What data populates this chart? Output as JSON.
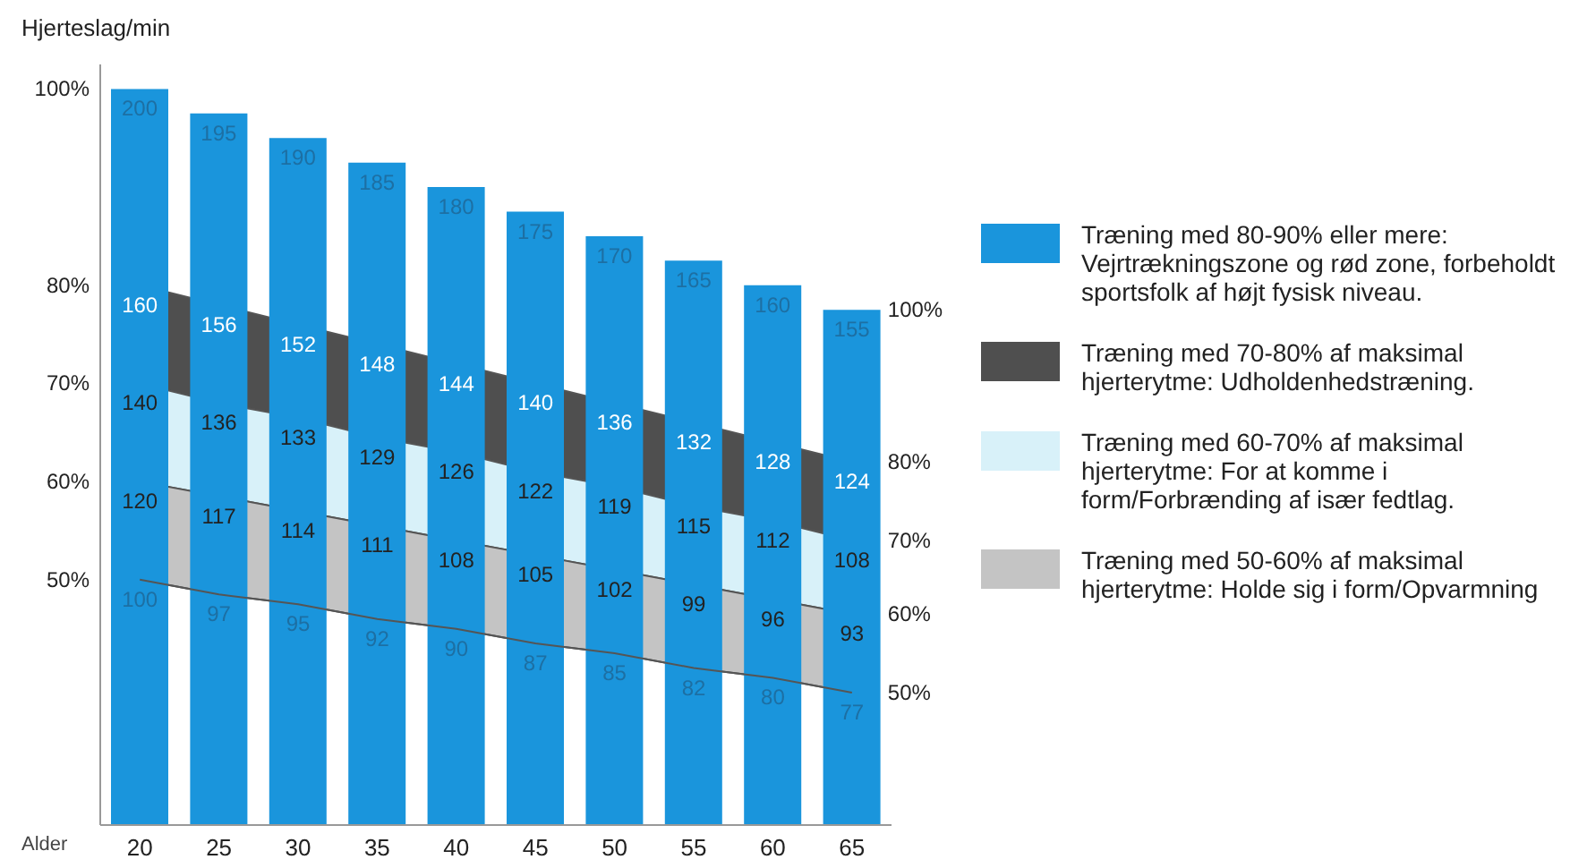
{
  "chart_data": {
    "type": "bar",
    "xlabel": "Alder",
    "ylabel": "Hjerteslag/min",
    "categories": [
      "20",
      "25",
      "30",
      "35",
      "40",
      "45",
      "50",
      "55",
      "60",
      "65"
    ],
    "ylim": [
      50,
      205
    ],
    "series": [
      {
        "name": "Træning med 80-90% eller mere: Vejrtrækningszone og rød zone, forbeholdt sportsfolk af højt fysisk niveau.",
        "color": "#1a95dc",
        "values": [
          200,
          195,
          190,
          185,
          180,
          175,
          170,
          165,
          160,
          155
        ],
        "value_labels": [
          "200",
          "195",
          "190",
          "185",
          "180",
          "175",
          "170",
          "165",
          "160",
          "155"
        ]
      },
      {
        "type": "area",
        "name": "Træning med 70-80% af maksimal hjerterytme: Udholdenhedstræning.",
        "color": "#4f4f4f",
        "values": [
          160,
          156,
          152,
          148,
          144,
          140,
          136,
          132,
          128,
          124
        ],
        "value_labels": [
          "160",
          "156",
          "152",
          "148",
          "144",
          "140",
          "136",
          "132",
          "128",
          "124"
        ]
      },
      {
        "type": "area",
        "name": "Træning med 60-70% af maksimal hjerterytme: For at komme i form/Forbrænding af især fedtlag.",
        "color": "#d8f1f9",
        "values": [
          140,
          136,
          133,
          129,
          126,
          122,
          119,
          115,
          112,
          108
        ],
        "value_labels": [
          "140",
          "136",
          "133",
          "129",
          "126",
          "122",
          "119",
          "115",
          "112",
          "108"
        ]
      },
      {
        "type": "area",
        "name": "Træning med 50-60% af maksimal hjerterytme: Holde sig i form/Opvarmning",
        "color": "#c4c4c4",
        "values": [
          120,
          117,
          114,
          111,
          108,
          105,
          102,
          99,
          96,
          93
        ],
        "value_labels": [
          "120",
          "117",
          "114",
          "111",
          "108",
          "105",
          "102",
          "99",
          "96",
          "93"
        ]
      },
      {
        "type": "line",
        "color": "#555555",
        "values": [
          100,
          97,
          95,
          92,
          90,
          87,
          85,
          82,
          80,
          77
        ],
        "value_labels": [
          "100",
          "97",
          "95",
          "92",
          "90",
          "87",
          "85",
          "82",
          "80",
          "77"
        ]
      }
    ],
    "annotations": [
      {
        "text": "100%",
        "x": "20",
        "y": 200
      },
      {
        "text": "80%",
        "x": "20",
        "y": 160
      },
      {
        "text": "70%",
        "x": "20",
        "y": 140
      },
      {
        "text": "60%",
        "x": "20",
        "y": 120
      },
      {
        "text": "50%",
        "x": "20",
        "y": 100
      },
      {
        "text": "100%",
        "x": "65",
        "y": 155
      },
      {
        "text": "80%",
        "x": "65",
        "y": 124
      },
      {
        "text": "70%",
        "x": "65",
        "y": 108
      },
      {
        "text": "60%",
        "x": "65",
        "y": 93
      },
      {
        "text": "50%",
        "x": "65",
        "y": 77
      }
    ],
    "legend": "right"
  }
}
